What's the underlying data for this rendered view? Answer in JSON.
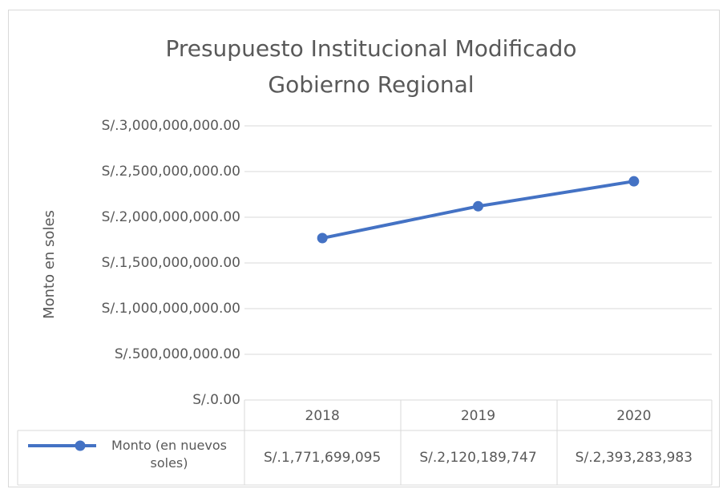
{
  "chart_data": {
    "type": "line",
    "title": [
      "Presupuesto Institucional Modificado",
      "Gobierno Regional"
    ],
    "y_label": "Monto en soles",
    "categories": [
      "2018",
      "2019",
      "2020"
    ],
    "series": [
      {
        "name": "Monto (en nuevos soles)",
        "color": "#4472c4",
        "values": [
          1771699095,
          2120189747,
          2393283983
        ],
        "value_labels": [
          "S/.1,771,699,095",
          "S/.2,120,189,747",
          "S/.2,393,283,983"
        ]
      }
    ],
    "ylim": [
      0,
      3000000000
    ],
    "yticks": [
      {
        "value": 0,
        "label": "S/.0.00"
      },
      {
        "value": 500000000,
        "label": "S/.500,000,000.00"
      },
      {
        "value": 1000000000,
        "label": "S/.1,000,000,000.00"
      },
      {
        "value": 1500000000,
        "label": "S/.1,500,000,000.00"
      },
      {
        "value": 2000000000,
        "label": "S/.2,000,000,000.00"
      },
      {
        "value": 2500000000,
        "label": "S/.2,500,000,000.00"
      },
      {
        "value": 3000000000,
        "label": "S/.3,000,000,000.00"
      }
    ],
    "grid": true,
    "data_table": true
  }
}
